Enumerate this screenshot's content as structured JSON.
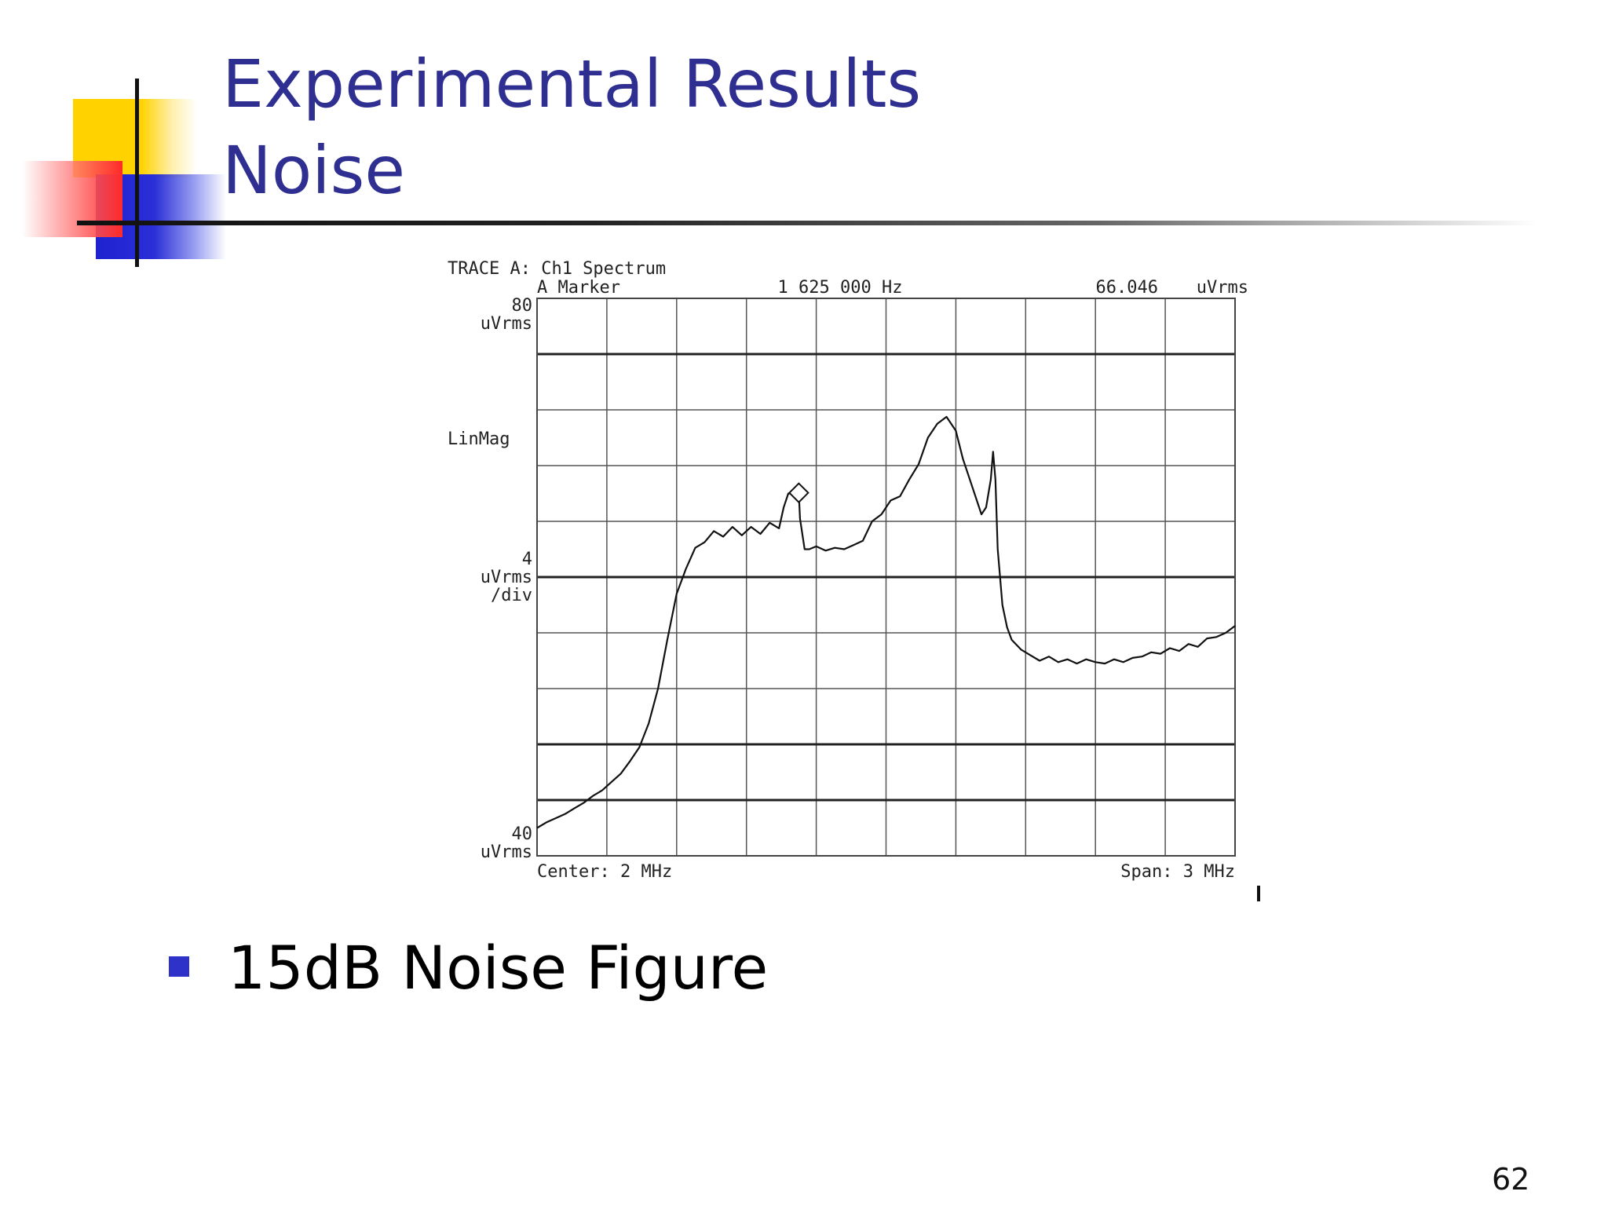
{
  "slide": {
    "title_line1": "Experimental Results",
    "title_line2": "Noise",
    "bullet": "15dB Noise Figure",
    "page_number": "62",
    "accent_colors": {
      "title": "#2f2f91",
      "bullet": "#2f32c8",
      "yellow": "#ffd200",
      "red": "#ff2a2a",
      "blue": "#1f22d0"
    }
  },
  "chart_data": {
    "type": "line",
    "header": "TRACE A: Ch1 Spectrum",
    "marker_label": "A Marker",
    "marker_freq": "1 625 000 Hz",
    "marker_value": "66.046",
    "marker_unit": "uVrms",
    "y_top_value": "80",
    "y_top_unit": "uVrms",
    "y_scale_mode": "LinMag",
    "y_div_value": "4",
    "y_div_unit": "uVrms",
    "y_div_suffix": "/div",
    "y_bottom_value": "40",
    "y_bottom_unit": "uVrms",
    "x_center_label": "Center: 2 MHz",
    "x_span_label": "Span: 3 MHz",
    "xlim": [
      0.5,
      3.5
    ],
    "ylim": [
      40,
      80
    ],
    "x_unit": "MHz",
    "y_unit": "uVrms",
    "grid": true,
    "marker": {
      "x": 1.625,
      "y": 66.046
    },
    "x": [
      0.5,
      0.54,
      0.58,
      0.62,
      0.66,
      0.7,
      0.74,
      0.78,
      0.82,
      0.86,
      0.9,
      0.94,
      0.98,
      1.02,
      1.06,
      1.1,
      1.14,
      1.18,
      1.22,
      1.26,
      1.3,
      1.34,
      1.38,
      1.42,
      1.46,
      1.5,
      1.54,
      1.56,
      1.58,
      1.6,
      1.62,
      1.625,
      1.63,
      1.65,
      1.67,
      1.7,
      1.74,
      1.78,
      1.82,
      1.86,
      1.9,
      1.94,
      1.98,
      2.02,
      2.06,
      2.1,
      2.14,
      2.18,
      2.22,
      2.26,
      2.3,
      2.33,
      2.36,
      2.39,
      2.41,
      2.43,
      2.45,
      2.46,
      2.47,
      2.48,
      2.5,
      2.52,
      2.54,
      2.58,
      2.62,
      2.66,
      2.7,
      2.74,
      2.78,
      2.82,
      2.86,
      2.9,
      2.94,
      2.98,
      3.02,
      3.06,
      3.1,
      3.14,
      3.18,
      3.22,
      3.26,
      3.3,
      3.34,
      3.38,
      3.42,
      3.46,
      3.5
    ],
    "y": [
      42.0,
      42.4,
      42.7,
      43.0,
      43.4,
      43.8,
      44.3,
      44.7,
      45.3,
      45.9,
      46.8,
      47.8,
      49.5,
      52.0,
      55.5,
      58.8,
      60.6,
      62.1,
      62.5,
      63.3,
      62.9,
      63.6,
      63.0,
      63.6,
      63.1,
      63.9,
      63.5,
      65.0,
      66.0,
      66.0,
      66.0,
      66.046,
      64.2,
      62.0,
      62.0,
      62.2,
      61.9,
      62.1,
      62.0,
      62.3,
      62.6,
      64.0,
      64.5,
      65.5,
      65.8,
      67.0,
      68.1,
      70.0,
      71.0,
      71.5,
      70.5,
      68.5,
      67.0,
      65.5,
      64.5,
      65.0,
      67.0,
      69.0,
      67.0,
      62.0,
      58.0,
      56.4,
      55.5,
      54.8,
      54.4,
      54.0,
      54.3,
      53.9,
      54.1,
      53.8,
      54.1,
      53.9,
      53.8,
      54.1,
      53.9,
      54.2,
      54.3,
      54.6,
      54.5,
      54.9,
      54.7,
      55.2,
      55.0,
      55.6,
      55.7,
      56.0,
      56.5
    ]
  }
}
